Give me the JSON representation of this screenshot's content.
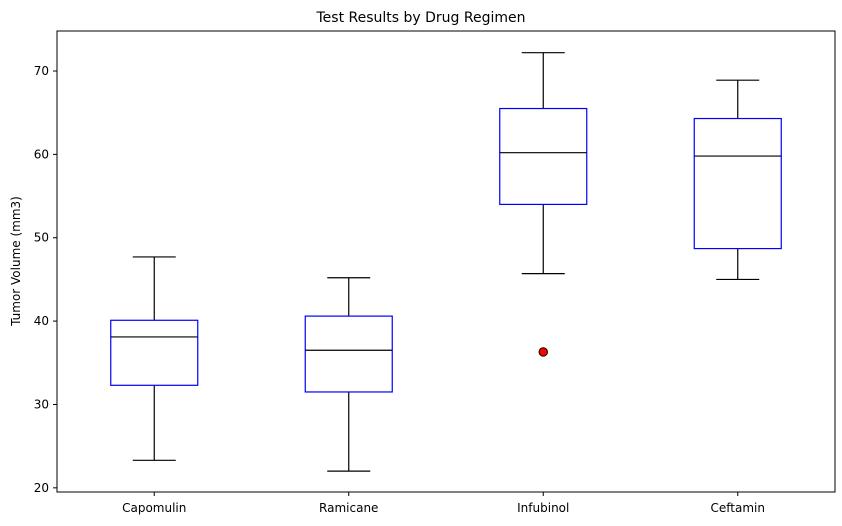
{
  "chart_data": {
    "type": "box",
    "title": "Test Results by Drug Regimen",
    "xlabel": "",
    "ylabel": "Tumor Volume (mm3)",
    "ylim": [
      19.5,
      74.8
    ],
    "yticks": [
      20,
      30,
      40,
      50,
      60,
      70
    ],
    "grid": false,
    "categories": [
      "Capomulin",
      "Ramicane",
      "Infubinol",
      "Ceftamin"
    ],
    "boxes": [
      {
        "category": "Capomulin",
        "whisker_low": 23.3,
        "q1": 32.3,
        "median": 38.1,
        "q3": 40.1,
        "whisker_high": 47.7,
        "outliers": []
      },
      {
        "category": "Ramicane",
        "whisker_low": 22.0,
        "q1": 31.5,
        "median": 36.5,
        "q3": 40.6,
        "whisker_high": 45.2,
        "outliers": []
      },
      {
        "category": "Infubinol",
        "whisker_low": 45.7,
        "q1": 54.0,
        "median": 60.2,
        "q3": 65.5,
        "whisker_high": 72.2,
        "outliers": [
          36.3
        ]
      },
      {
        "category": "Ceftamin",
        "whisker_low": 45.0,
        "q1": 48.7,
        "median": 59.8,
        "q3": 64.3,
        "whisker_high": 68.9,
        "outliers": []
      }
    ],
    "colors": {
      "box": "#0000ff",
      "whisker": "#000000",
      "median": "#000000",
      "outlier_fill": "#ff0000",
      "outlier_edge": "#000000"
    }
  }
}
